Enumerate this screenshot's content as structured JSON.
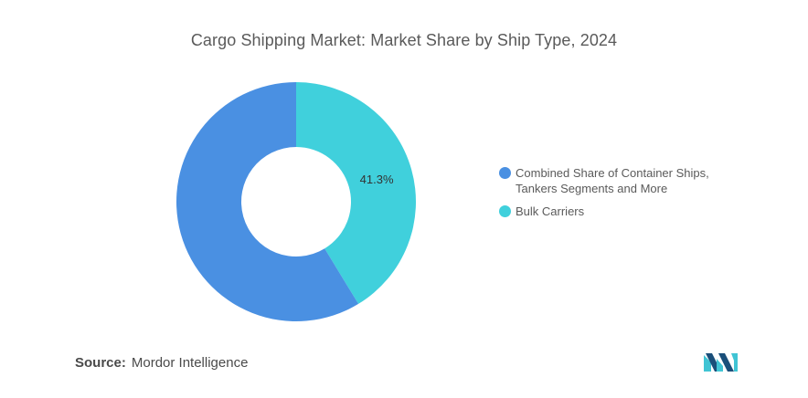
{
  "chart_data": {
    "type": "pie",
    "title": "Cargo Shipping Market: Market Share by Ship Type, 2024",
    "categories": [
      "Combined Share of Container Ships, Tankers Segments and More",
      "Bulk Carriers"
    ],
    "values": [
      58.7,
      41.3
    ],
    "data_labels": [
      "",
      "41.3%"
    ],
    "colors": [
      "#4a90e2",
      "#40d0dc"
    ],
    "legend_position": "right",
    "donut": true
  },
  "source": {
    "label": "Source:",
    "text": "Mordor Intelligence"
  },
  "logo": {
    "icon": "mordor-intelligence-logo-icon",
    "colors": [
      "#1a4f7a",
      "#40c4d4"
    ]
  }
}
